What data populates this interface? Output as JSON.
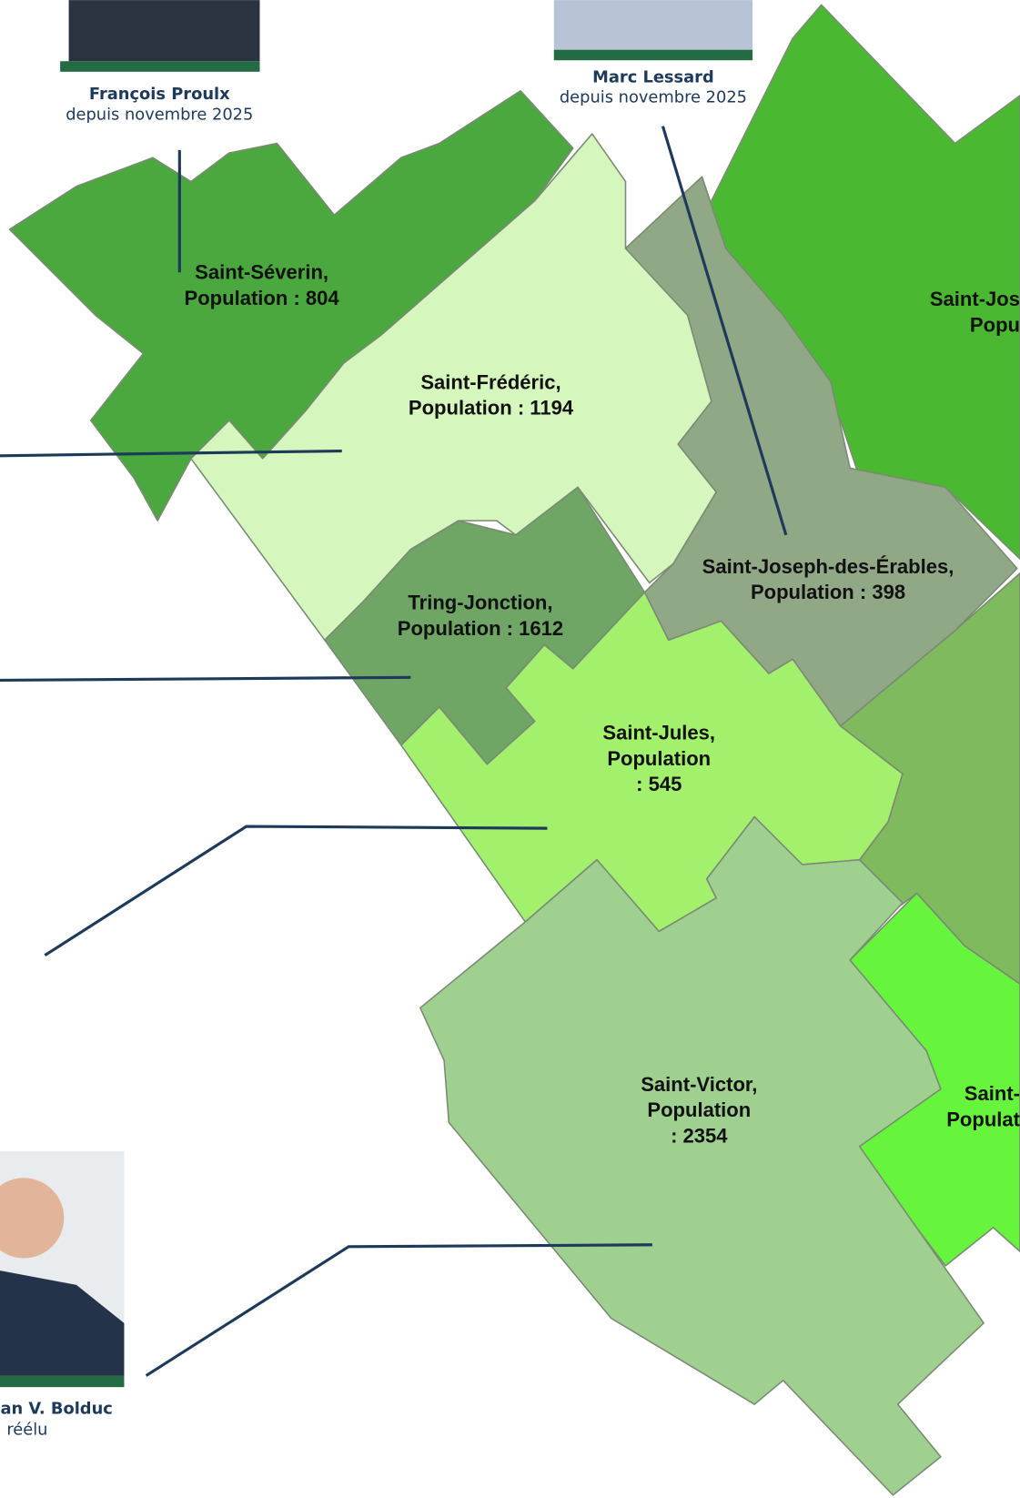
{
  "people": [
    {
      "name": "François Proulx",
      "subtitle": "depuis novembre 2025"
    },
    {
      "name": "Marc Lessard",
      "subtitle": "depuis novembre 2025"
    },
    {
      "name": "an V. Bolduc",
      "subtitle": "réélu"
    }
  ],
  "regions": [
    {
      "lines": [
        "Saint-Séverin,",
        "Population : 804"
      ]
    },
    {
      "lines": [
        "Saint-Frédéric,",
        "Population : 1194"
      ]
    },
    {
      "lines": [
        "Tring-Jonction,",
        "Population : 1612"
      ]
    },
    {
      "lines": [
        "Saint-Joseph-des-Érables,",
        "Population : 398"
      ]
    },
    {
      "lines": [
        "Saint-Jules,",
        "Population",
        ": 545"
      ]
    },
    {
      "lines": [
        "Saint-Victor,",
        "Population",
        ": 2354"
      ]
    },
    {
      "lines": [
        "Saint-Jos",
        "Popu"
      ]
    },
    {
      "lines": [
        "Saint-",
        "Populat"
      ]
    }
  ]
}
